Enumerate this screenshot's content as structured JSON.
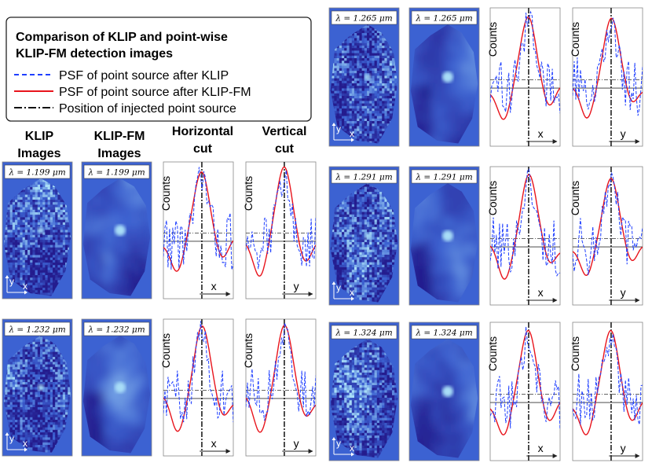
{
  "legend": {
    "title_line1": "Comparison of KLIP and point-wise",
    "title_line2": "KLIP-FM detection images",
    "items": [
      {
        "label": "PSF of point source after KLIP",
        "color": "#1f3fff",
        "style": "dashed"
      },
      {
        "label": "PSF of point source after KLIP-FM",
        "color": "#e8141c",
        "style": "solid"
      },
      {
        "label": "Position of injected point source",
        "color": "#111111",
        "style": "dashdot"
      }
    ]
  },
  "column_headers": {
    "klip_line1": "KLIP",
    "klip_line2": "Images",
    "klipfm_line1": "KLIP-FM",
    "klipfm_line2": "Images",
    "hcut_line1": "Horizontal",
    "hcut_line2": "cut",
    "vcut_line1": "Vertical",
    "vcut_line2": "cut"
  },
  "axis_text": {
    "counts": "Counts",
    "x": "x",
    "y": "y"
  },
  "panels": [
    {
      "wavelength": "λ = 1.199 μm"
    },
    {
      "wavelength": "λ = 1.232 μm"
    },
    {
      "wavelength": "λ = 1.265 μm"
    },
    {
      "wavelength": "λ = 1.291 μm"
    },
    {
      "wavelength": "λ = 1.324 μm"
    }
  ],
  "colors": {
    "image_bg": "#3c62d2",
    "image_dark": "#241c8e",
    "image_light": "#a8ddf7",
    "klip_line": "#1f3fff",
    "klipfm_line": "#e8141c",
    "marker_line": "#111111"
  }
}
